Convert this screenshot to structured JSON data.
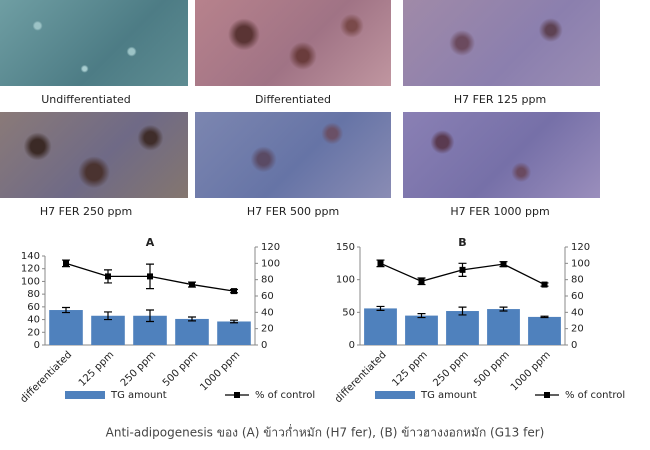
{
  "image_labels": [
    "Undifferentiated",
    "Differentiated",
    "H7 FER 125 ppm",
    "H7 FER 250 ppm",
    "H7 FER 500 ppm",
    "H7 FER 1000 ppm"
  ],
  "chart_data": [
    {
      "type": "bar",
      "title": "A",
      "categories": [
        "differentiated",
        "125 ppm",
        "250 ppm",
        "500 ppm",
        "1000 ppm"
      ],
      "series": [
        {
          "name": "TG amount",
          "type": "bar",
          "color": "#4f81bd",
          "axis": "y",
          "values": [
            55,
            46,
            46,
            41,
            37
          ],
          "errors": [
            4,
            6,
            9,
            3,
            2
          ]
        },
        {
          "name": "% of control",
          "type": "line",
          "color": "#000000",
          "axis": "y2",
          "values": [
            100,
            84,
            84,
            74,
            66
          ],
          "errors": [
            4,
            8,
            15,
            3,
            2
          ]
        }
      ],
      "ylim": [
        0,
        140
      ],
      "yticks": [
        0,
        20,
        40,
        60,
        80,
        100,
        120,
        140
      ],
      "y2lim": [
        0,
        120
      ],
      "y2ticks": [
        0,
        20,
        40,
        60,
        80,
        100,
        120
      ],
      "legend": "bottom"
    },
    {
      "type": "bar",
      "title": "B",
      "categories": [
        "differentiated",
        "125 ppm",
        "250 ppm",
        "500 ppm",
        "1000 ppm"
      ],
      "series": [
        {
          "name": "TG amount",
          "type": "bar",
          "color": "#4f81bd",
          "axis": "y",
          "values": [
            56,
            45,
            52,
            55,
            43
          ],
          "errors": [
            3,
            3,
            6,
            3,
            1
          ]
        },
        {
          "name": "% of control",
          "type": "line",
          "color": "#000000",
          "axis": "y2",
          "values": [
            100,
            78,
            92,
            99,
            74
          ],
          "errors": [
            4,
            4,
            8,
            3,
            2
          ]
        }
      ],
      "ylim": [
        0,
        150
      ],
      "yticks": [
        0,
        50,
        100,
        150
      ],
      "y2lim": [
        0,
        120
      ],
      "y2ticks": [
        0,
        20,
        40,
        60,
        80,
        100,
        120
      ],
      "legend": "bottom"
    }
  ],
  "caption": "Anti-adipogenesis ของ (A) ข้าวก่ำหมัก (H7 fer), (B) ข้าวฮางงอกหมัก (G13 fer)"
}
